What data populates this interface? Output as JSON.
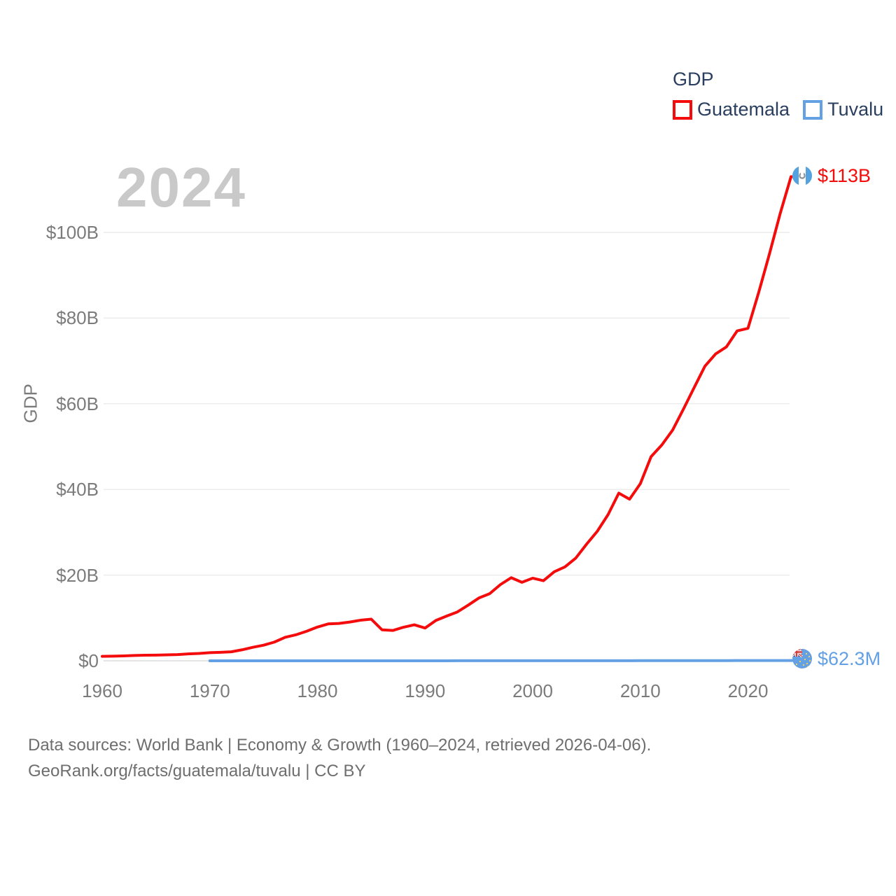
{
  "watermark_year": "2024",
  "legend": {
    "title": "GDP",
    "items": [
      {
        "label": "Guatemala",
        "color": "#f40b0b"
      },
      {
        "label": "Tuvalu",
        "color": "#64a0e4"
      }
    ]
  },
  "y_axis": {
    "title": "GDP",
    "ticks": [
      {
        "label": "$0",
        "value": 0
      },
      {
        "label": "$20B",
        "value": 20
      },
      {
        "label": "$40B",
        "value": 40
      },
      {
        "label": "$60B",
        "value": 60
      },
      {
        "label": "$80B",
        "value": 80
      },
      {
        "label": "$100B",
        "value": 100
      }
    ]
  },
  "x_axis": {
    "ticks": [
      {
        "label": "1960",
        "value": 1960
      },
      {
        "label": "1970",
        "value": 1970
      },
      {
        "label": "1980",
        "value": 1980
      },
      {
        "label": "1990",
        "value": 1990
      },
      {
        "label": "2000",
        "value": 2000
      },
      {
        "label": "2010",
        "value": 2010
      },
      {
        "label": "2020",
        "value": 2020
      }
    ]
  },
  "end_labels": [
    {
      "series": "Guatemala",
      "text": "$113B",
      "flag_icon": "guatemala-flag-icon",
      "color": "#f40b0b"
    },
    {
      "series": "Tuvalu",
      "text": "$62.3M",
      "flag_icon": "tuvalu-flag-icon",
      "color": "#64a0e4"
    }
  ],
  "footer": {
    "line1": "Data sources: World Bank | Economy & Growth (1960–2024, retrieved 2026-04-06).",
    "line2": "GeoRank.org/facts/guatemala/tuvalu | CC BY"
  },
  "chart_data": {
    "type": "line",
    "title": "GDP",
    "xlabel": "",
    "ylabel": "GDP",
    "xlim": [
      1958.5,
      2024
    ],
    "ylim": [
      0,
      116
    ],
    "grid": "horizontal",
    "legend_position": "top-right",
    "series": [
      {
        "name": "Guatemala",
        "color": "#f40b0b",
        "unit": "USD billions",
        "x": [
          1960,
          1961,
          1962,
          1963,
          1964,
          1965,
          1966,
          1967,
          1968,
          1969,
          1970,
          1971,
          1972,
          1973,
          1974,
          1975,
          1976,
          1977,
          1978,
          1979,
          1980,
          1981,
          1982,
          1983,
          1984,
          1985,
          1986,
          1987,
          1988,
          1989,
          1990,
          1991,
          1992,
          1993,
          1994,
          1995,
          1996,
          1997,
          1998,
          1999,
          2000,
          2001,
          2002,
          2003,
          2004,
          2005,
          2006,
          2007,
          2008,
          2009,
          2010,
          2011,
          2012,
          2013,
          2014,
          2015,
          2016,
          2017,
          2018,
          2019,
          2020,
          2021,
          2022,
          2023,
          2024
        ],
        "values": [
          1.04,
          1.08,
          1.14,
          1.24,
          1.31,
          1.33,
          1.39,
          1.45,
          1.61,
          1.72,
          1.9,
          1.98,
          2.1,
          2.57,
          3.16,
          3.65,
          4.37,
          5.48,
          6.07,
          6.9,
          7.88,
          8.61,
          8.72,
          9.05,
          9.47,
          9.72,
          7.23,
          7.08,
          7.84,
          8.41,
          7.65,
          9.41,
          10.44,
          11.4,
          12.98,
          14.66,
          15.67,
          17.79,
          19.4,
          18.32,
          19.29,
          18.7,
          20.78,
          21.92,
          23.97,
          27.21,
          30.23,
          34.11,
          39.14,
          37.73,
          41.34,
          47.65,
          50.39,
          53.85,
          58.72,
          63.77,
          68.76,
          71.64,
          73.28,
          77.02,
          77.6,
          86.0,
          95.0,
          104.45,
          113.0
        ]
      },
      {
        "name": "Tuvalu",
        "color": "#64a0e4",
        "unit": "USD millions",
        "x": [
          1970,
          1971,
          1972,
          1973,
          1974,
          1975,
          1976,
          1977,
          1978,
          1979,
          1980,
          1981,
          1982,
          1983,
          1984,
          1985,
          1986,
          1987,
          1988,
          1989,
          1990,
          1991,
          1992,
          1993,
          1994,
          1995,
          1996,
          1997,
          1998,
          1999,
          2000,
          2001,
          2002,
          2003,
          2004,
          2005,
          2006,
          2007,
          2008,
          2009,
          2010,
          2011,
          2012,
          2013,
          2014,
          2015,
          2016,
          2017,
          2018,
          2019,
          2020,
          2021,
          2022,
          2023,
          2024
        ],
        "values": [
          1.0,
          1.1,
          1.2,
          1.5,
          1.8,
          2.2,
          2.4,
          2.7,
          3.0,
          3.5,
          4.0,
          4.2,
          4.3,
          4.3,
          4.4,
          4.4,
          5.2,
          6.5,
          7.4,
          8.0,
          8.8,
          9.5,
          10.2,
          10.5,
          10.8,
          11.0,
          11.5,
          12.0,
          12.5,
          13.0,
          13.7,
          14.5,
          16.0,
          18.0,
          20.0,
          21.5,
          23.0,
          26.0,
          30.0,
          27.0,
          31.8,
          38.0,
          38.5,
          38.0,
          37.0,
          36.3,
          40.0,
          43.0,
          47.0,
          52.0,
          54.0,
          57.0,
          59.5,
          61.0,
          62.3
        ]
      }
    ]
  }
}
